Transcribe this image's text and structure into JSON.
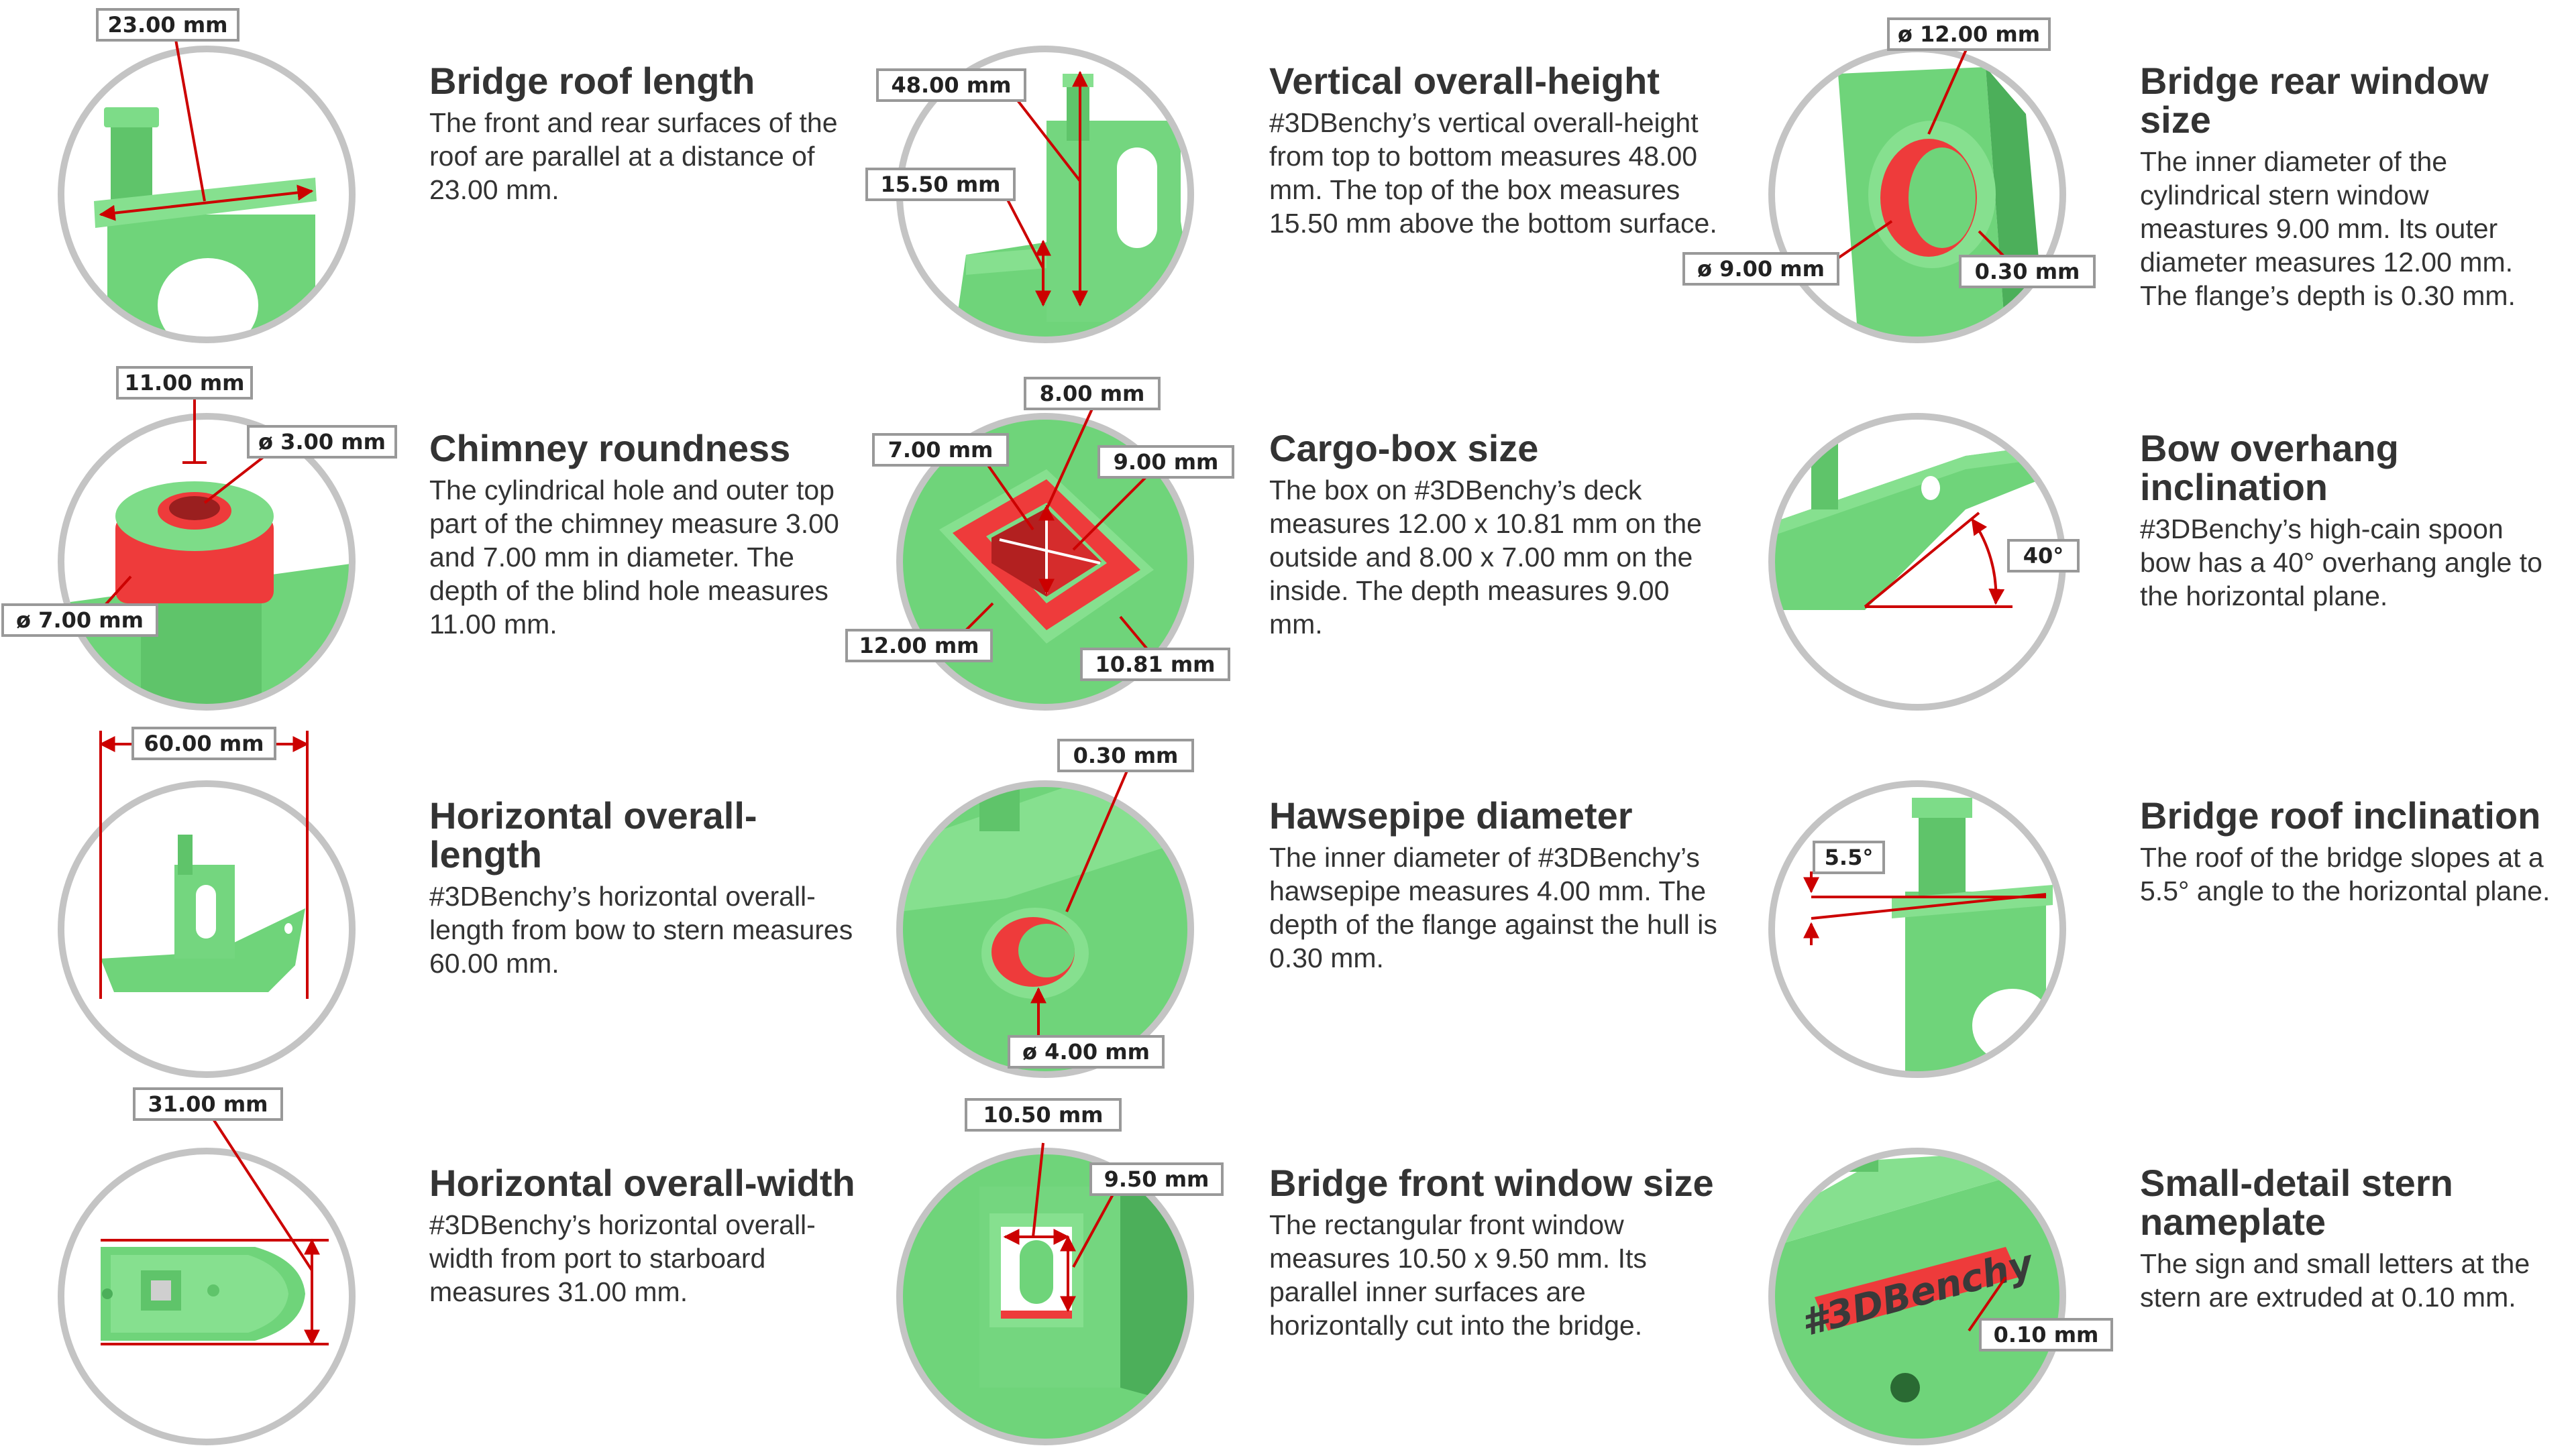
{
  "colors": {
    "model_green": "#6fd47a",
    "model_green_dark": "#4caf5a",
    "highlight_red": "#ee3b3b",
    "dimension_red": "#cc0000",
    "ring_grey": "#c4c4c4",
    "text": "#333333"
  },
  "items": [
    {
      "title": "Bridge roof length",
      "body": "The front and rear surfaces of the roof are parallel at a distance of 23.00 mm.",
      "labels": [
        "23.00 mm"
      ]
    },
    {
      "title": "Vertical overall-height",
      "body": "#3DBenchy’s vertical overall-height from top to bottom measures 48.00 mm. The top of the box measures 15.50 mm above the bottom surface.",
      "labels": [
        "48.00 mm",
        "15.50 mm"
      ]
    },
    {
      "title": "Bridge rear window size",
      "body": "The inner diameter of the cylindrical stern window meastures 9.00 mm. Its outer diameter measures 12.00 mm. The flange’s depth is 0.30 mm.",
      "labels": [
        "ø 12.00 mm",
        "ø 9.00 mm",
        "0.30 mm"
      ]
    },
    {
      "title": "Chimney roundness",
      "body": "The cylindrical hole and outer top part of the chimney measure 3.00 and 7.00 mm in diameter. The depth of the blind hole measures 11.00 mm.",
      "labels": [
        "11.00 mm",
        "ø 3.00 mm",
        "ø 7.00 mm"
      ]
    },
    {
      "title": "Cargo-box size",
      "body": "The box on #3DBenchy’s deck measures 12.00 x 10.81 mm on the outside and 8.00 x 7.00 mm on the inside. The depth measures 9.00 mm.",
      "labels": [
        "8.00 mm",
        "7.00 mm",
        "9.00 mm",
        "12.00 mm",
        "10.81 mm"
      ]
    },
    {
      "title": "Bow overhang inclination",
      "body": "#3DBenchy’s high-cain spoon bow has a 40° overhang angle to the horizontal plane.",
      "labels": [
        "40°"
      ]
    },
    {
      "title": "Horizontal overall-length",
      "body": "#3DBenchy’s horizontal overall-length from bow to stern measures 60.00 mm.",
      "labels": [
        "60.00 mm"
      ]
    },
    {
      "title": "Hawsepipe diameter",
      "body": "The inner diameter of #3DBenchy’s hawsepipe measures 4.00 mm. The depth of the flange against the hull is 0.30 mm.",
      "labels": [
        "0.30 mm",
        "ø 4.00 mm"
      ]
    },
    {
      "title": "Bridge roof inclination",
      "body": "The roof of the bridge slopes at a 5.5° angle to the horizontal plane.",
      "labels": [
        "5.5°"
      ]
    },
    {
      "title": "Horizontal overall-width",
      "body": "#3DBenchy’s horizontal overall-width from port to starboard measures 31.00 mm.",
      "labels": [
        "31.00 mm"
      ]
    },
    {
      "title": "Bridge front window size",
      "body": "The rectangular front window measures 10.50 x 9.50 mm. Its parallel inner surfaces are horizontally cut into the bridge.",
      "labels": [
        "10.50 mm",
        "9.50 mm"
      ]
    },
    {
      "title": "Small-detail stern nameplate",
      "body": "The sign and small letters at the stern are extruded at 0.10 mm.",
      "labels": [
        "0.10 mm"
      ],
      "nameplate": "#3DBenchy"
    }
  ]
}
